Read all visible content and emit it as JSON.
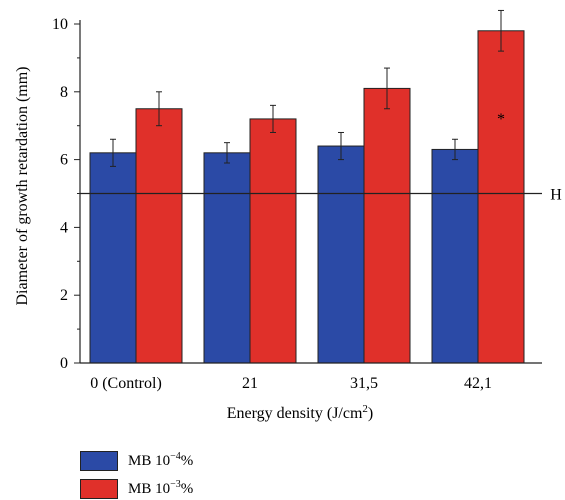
{
  "chart_data": {
    "type": "bar",
    "categories": [
      "0 (Control)",
      "21",
      "31,5",
      "42,1"
    ],
    "series": [
      {
        "name": "MB 10−4%",
        "color": "#2b4aa6",
        "values": [
          6.2,
          6.2,
          6.4,
          6.3
        ],
        "errors": [
          0.4,
          0.3,
          0.4,
          0.3
        ]
      },
      {
        "name": "MB 10−3%",
        "color": "#e0302a",
        "values": [
          7.5,
          7.2,
          8.1,
          9.8
        ],
        "errors": [
          0.5,
          0.4,
          0.6,
          0.6
        ]
      }
    ],
    "xlabel": "Energy density (J/cm2)",
    "ylabel": "Diameter of growth retardation (mm)",
    "ylim": [
      0,
      10
    ],
    "yticks": [
      "0",
      "2",
      "4",
      "6",
      "8",
      "10"
    ],
    "reference_line": {
      "value": 5,
      "label": "H"
    },
    "annotations": [
      {
        "category": "42,1",
        "series": 1,
        "text": "*"
      }
    ],
    "legend": {
      "position": "bottom-left",
      "items": [
        {
          "base": "MB 10",
          "exp": "−4",
          "suffix": "%"
        },
        {
          "base": "MB 10",
          "exp": "−3",
          "suffix": "%"
        }
      ]
    }
  }
}
